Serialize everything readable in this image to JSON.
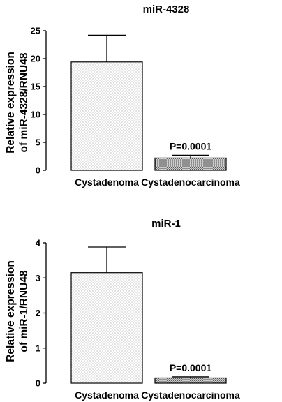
{
  "chart_data": [
    {
      "type": "bar",
      "title": "miR-4328",
      "ylabel_lines": [
        "Relative expression",
        "of miR-4328/RNU48"
      ],
      "categories": [
        "Cystadenoma",
        "Cystadenocarcinoma"
      ],
      "values": [
        19.4,
        2.2
      ],
      "error_upper": [
        24.2,
        2.7
      ],
      "ylim": [
        0,
        25
      ],
      "yticks": [
        "0",
        "5",
        "10",
        "15",
        "20",
        "25"
      ],
      "annotation": "P=0.0001",
      "annotation_category": "Cystadenocarcinoma",
      "bar_patterns": [
        "light-dots",
        "dark-dots"
      ]
    },
    {
      "type": "bar",
      "title": "miR-1",
      "ylabel_lines": [
        "Relative expression",
        "of miR-1/RNU48"
      ],
      "categories": [
        "Cystadenoma",
        "Cystadenocarcinoma"
      ],
      "values": [
        3.15,
        0.15
      ],
      "error_upper": [
        3.88,
        0.18
      ],
      "ylim": [
        0,
        4
      ],
      "yticks": [
        "0",
        "1",
        "2",
        "3",
        "4"
      ],
      "annotation": "P=0.0001",
      "annotation_category": "Cystadenocarcinoma",
      "bar_patterns": [
        "light-dots",
        "dark-dots"
      ]
    }
  ]
}
